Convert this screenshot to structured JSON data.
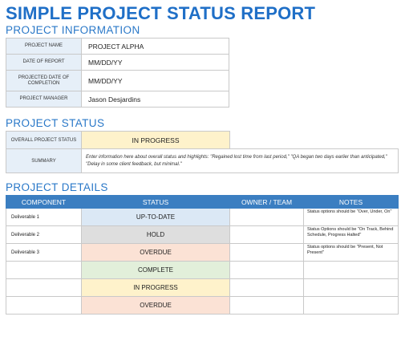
{
  "title": "SIMPLE PROJECT STATUS REPORT",
  "sections": {
    "info": "PROJECT INFORMATION",
    "status": "PROJECT STATUS",
    "details": "PROJECT DETAILS"
  },
  "info": {
    "project_name_label": "PROJECT NAME",
    "project_name": "PROJECT ALPHA",
    "date_label": "DATE OF REPORT",
    "date": "MM/DD/YY",
    "completion_label": "PROJECTED DATE OF COMPLETION",
    "completion": "MM/DD/YY",
    "manager_label": "PROJECT MANAGER",
    "manager": "Jason Desjardins"
  },
  "status": {
    "overall_label": "OVERALL PROJECT STATUS",
    "overall": "IN PROGRESS",
    "summary_label": "SUMMARY",
    "summary": "Enter information here about overall status and highlights: \"Regained lost time from last period,\" \"QA began two days earlier than anticipated,\" \"Delay in some client feedback, but minimal.\""
  },
  "details": {
    "headers": {
      "component": "COMPONENT",
      "status": "STATUS",
      "owner": "OWNER / TEAM",
      "notes": "NOTES"
    },
    "rows": [
      {
        "component": "Deliverable 1",
        "status": "UP-TO-DATE",
        "owner": "",
        "notes": "Status options should be \"Over, Under, On\""
      },
      {
        "component": "Deliverable 2",
        "status": "HOLD",
        "owner": "",
        "notes": "Status Options should be \"On Track, Behind Schedule, Progress Halted\""
      },
      {
        "component": "Deliverable 3",
        "status": "OVERDUE",
        "owner": "",
        "notes": "Status options should be \"Present, Not Present\""
      },
      {
        "component": "",
        "status": "COMPLETE",
        "owner": "",
        "notes": ""
      },
      {
        "component": "",
        "status": "IN PROGRESS",
        "owner": "",
        "notes": ""
      },
      {
        "component": "",
        "status": "OVERDUE",
        "owner": "",
        "notes": ""
      }
    ]
  },
  "colors": {
    "title": "#1f6fc7",
    "header": "#3b7ec1",
    "up_to_date": "#dbe8f5",
    "hold": "#dedede",
    "overdue": "#fbe2d5",
    "complete": "#e2efda",
    "in_progress": "#fef2cb"
  }
}
